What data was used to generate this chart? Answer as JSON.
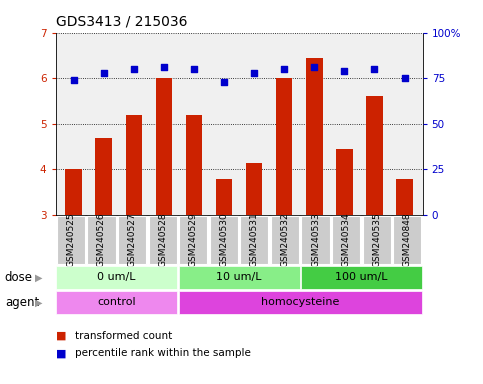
{
  "title": "GDS3413 / 215036",
  "samples": [
    "GSM240525",
    "GSM240526",
    "GSM240527",
    "GSM240528",
    "GSM240529",
    "GSM240530",
    "GSM240531",
    "GSM240532",
    "GSM240533",
    "GSM240534",
    "GSM240535",
    "GSM240848"
  ],
  "transformed_count": [
    4.0,
    4.7,
    5.2,
    6.0,
    5.2,
    3.8,
    4.15,
    6.0,
    6.45,
    4.45,
    5.6,
    3.8
  ],
  "percentile_rank": [
    74,
    78,
    80,
    81,
    80,
    73,
    78,
    80,
    81,
    79,
    80,
    75
  ],
  "ylim_left": [
    3,
    7
  ],
  "ylim_right": [
    0,
    100
  ],
  "yticks_left": [
    3,
    4,
    5,
    6,
    7
  ],
  "yticks_right": [
    0,
    25,
    50,
    75,
    100
  ],
  "bar_color": "#cc2200",
  "dot_color": "#0000cc",
  "bar_width": 0.55,
  "dose_groups": [
    {
      "label": "0 um/L",
      "start": 0,
      "end": 4,
      "color": "#ccffcc"
    },
    {
      "label": "10 um/L",
      "start": 4,
      "end": 8,
      "color": "#88ee88"
    },
    {
      "label": "100 um/L",
      "start": 8,
      "end": 12,
      "color": "#44cc44"
    }
  ],
  "agent_groups": [
    {
      "label": "control",
      "start": 0,
      "end": 4,
      "color": "#ee88ee"
    },
    {
      "label": "homocysteine",
      "start": 4,
      "end": 12,
      "color": "#dd44dd"
    }
  ],
  "dose_label": "dose",
  "agent_label": "agent",
  "legend_bar_label": "transformed count",
  "legend_dot_label": "percentile rank within the sample",
  "bg_color": "#ffffff",
  "plot_bg_color": "#f0f0f0",
  "grid_color": "#000000",
  "tick_label_color_left": "#cc2200",
  "tick_label_color_right": "#0000cc",
  "sample_box_color": "#cccccc",
  "arrow_color": "#999999",
  "title_fontsize": 10,
  "tick_fontsize": 7.5,
  "sample_label_fontsize": 6.5,
  "row_label_fontsize": 8.5,
  "legend_fontsize": 7.5
}
